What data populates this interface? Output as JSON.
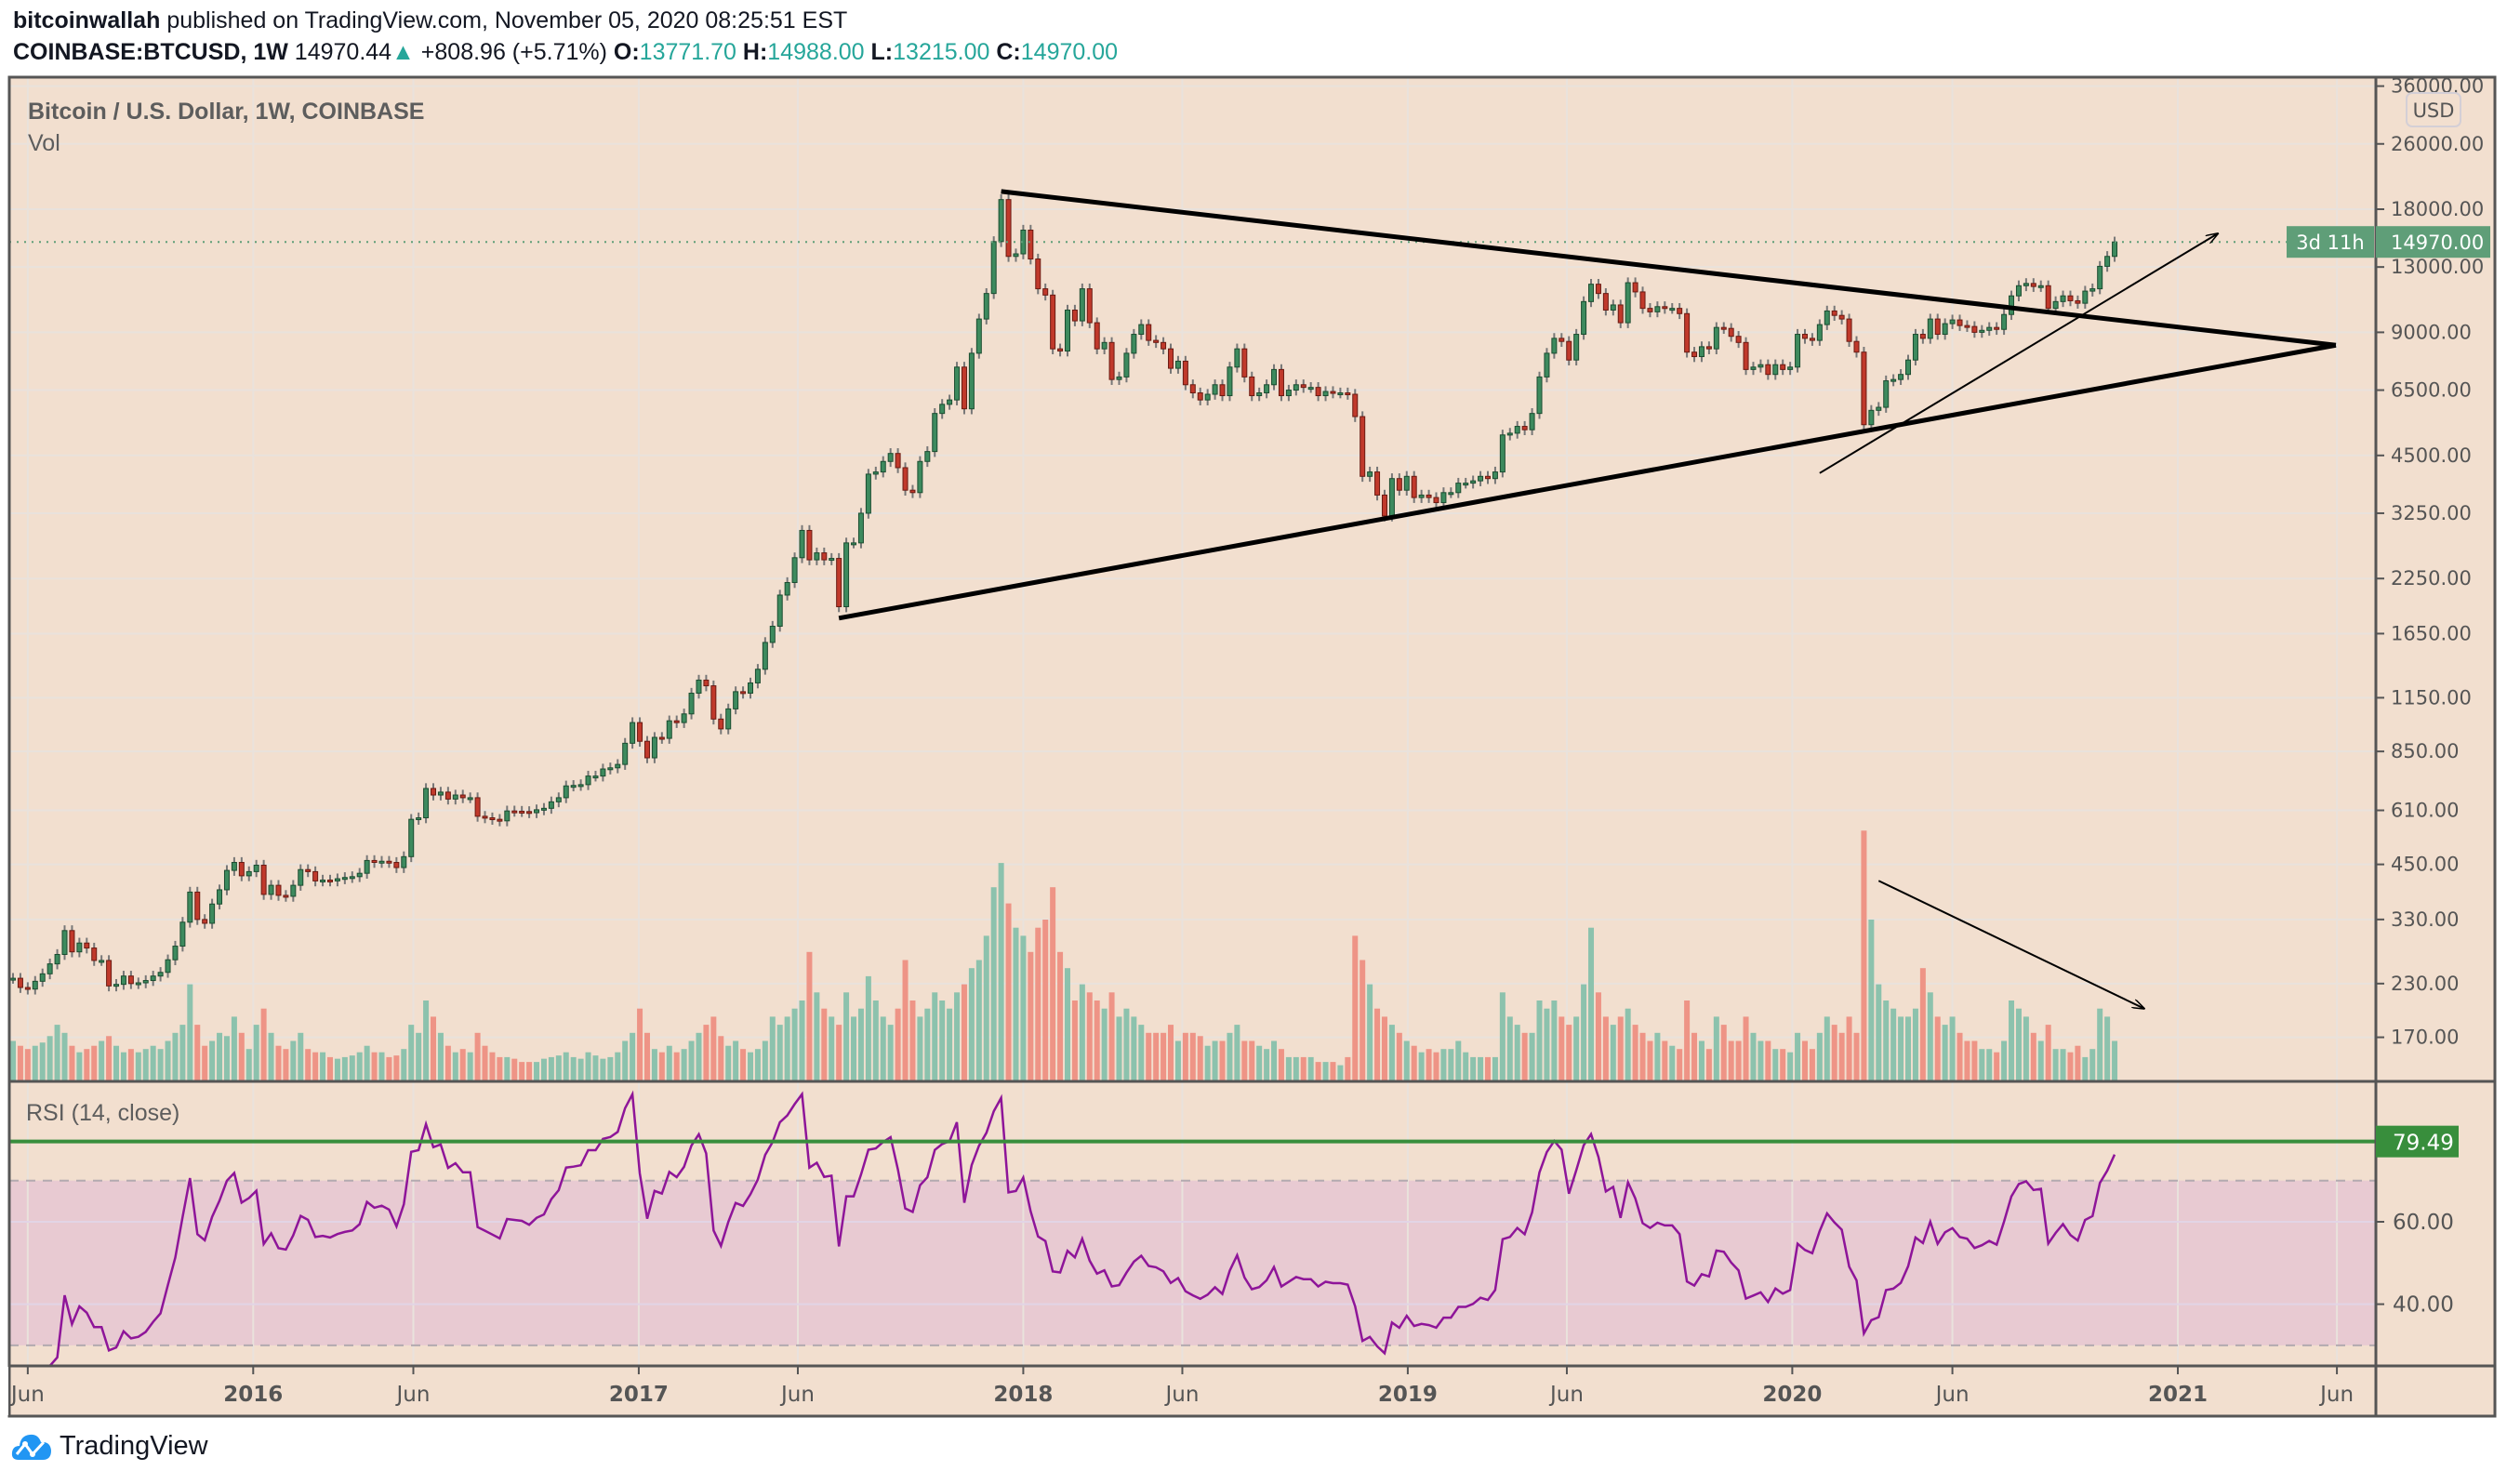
{
  "header": {
    "author": "bitcoinwallah",
    "published": "published on TradingView.com, November 05, 2020 08:25:51 EST",
    "symbol": "COINBASE:BTCUSD, 1W",
    "last": "14970.44",
    "change": "+808.96 (+5.71%)",
    "o_label": "O:",
    "o": "13771.70",
    "h_label": "H:",
    "h": "14988.00",
    "l_label": "L:",
    "l": "13215.00",
    "c_label": "C:",
    "c": "14970.00",
    "up_icon": "triangle-up-icon"
  },
  "footer": {
    "brand": "TradingView",
    "logo_icon": "tradingview-cloud-icon"
  },
  "colors": {
    "background": "#f2dfcf",
    "up": "#3d8a5e",
    "down": "#c0392b",
    "vol_up": "#8cc2ad",
    "vol_down": "#ee9486",
    "rsi": "#8e1599",
    "rsi_band": "#e8cad2",
    "price_label": "#5f9e78",
    "hline": "#388e3c",
    "accent": "#26a69a"
  },
  "chart_data": {
    "type": "candlestick",
    "title": "Bitcoin / U.S. Dollar, 1W, COINBASE",
    "volume_label": "Vol",
    "indicator_label": "RSI (14, close)",
    "interval": "1W",
    "first_week": "2015-05-18",
    "y_scale": "log",
    "currency": "USD",
    "ylim": [
      140,
      38000
    ],
    "grid": true,
    "close": [
      237,
      225,
      223,
      233,
      243,
      257,
      271,
      310,
      275,
      289,
      281,
      262,
      262,
      227,
      229,
      240,
      230,
      231,
      234,
      240,
      245,
      263,
      284,
      325,
      385,
      330,
      323,
      360,
      390,
      435,
      455,
      422,
      432,
      448,
      380,
      400,
      378,
      376,
      400,
      437,
      432,
      410,
      412,
      410,
      415,
      418,
      420,
      428,
      460,
      455,
      458,
      455,
      442,
      470,
      580,
      585,
      690,
      665,
      676,
      650,
      665,
      655,
      655,
      590,
      585,
      580,
      575,
      608,
      607,
      606,
      602,
      612,
      617,
      640,
      655,
      700,
      702,
      705,
      740,
      740,
      770,
      775,
      790,
      890,
      1000,
      900,
      820,
      920,
      915,
      1010,
      1000,
      1050,
      1180,
      1270,
      1230,
      1020,
      965,
      1080,
      1190,
      1180,
      1250,
      1350,
      1570,
      1720,
      2050,
      2200,
      2530,
      2950,
      2500,
      2600,
      2500,
      2520,
      1920,
      2750,
      2750,
      3250,
      4050,
      4100,
      4350,
      4550,
      4200,
      3700,
      3650,
      4350,
      4600,
      5700,
      6000,
      6150,
      7400,
      5850,
      8000,
      9700,
      11200,
      15000,
      19000,
      13800,
      14000,
      16000,
      13600,
      11500,
      11100,
      8200,
      8100,
      10200,
      9600,
      11500,
      9500,
      8200,
      8500,
      6900,
      7000,
      8000,
      8900,
      9400,
      8600,
      8500,
      8200,
      7350,
      7650,
      6700,
      6400,
      6150,
      6350,
      6700,
      6300,
      7400,
      8200,
      7000,
      6300,
      6400,
      6700,
      7300,
      6300,
      6500,
      6700,
      6600,
      6600,
      6300,
      6450,
      6400,
      6400,
      6350,
      5600,
      4000,
      4100,
      3600,
      3200,
      3950,
      3700,
      4000,
      3550,
      3600,
      3550,
      3450,
      3650,
      3650,
      3850,
      3850,
      3900,
      4000,
      3950,
      4100,
      5050,
      5100,
      5300,
      5200,
      5700,
      7000,
      8000,
      8700,
      8550,
      7700,
      8900,
      10700,
      11800,
      11200,
      10200,
      10500,
      9500,
      11900,
      11300,
      10300,
      10100,
      10400,
      10300,
      10300,
      10000,
      8050,
      7850,
      8300,
      8200,
      9250,
      9200,
      8800,
      8500,
      7300,
      7400,
      7500,
      7100,
      7500,
      7300,
      7400,
      8900,
      8700,
      8600,
      9400,
      10150,
      9900,
      9700,
      8550,
      8050,
      5350,
      5800,
      5900,
      6850,
      6900,
      7100,
      7700,
      8900,
      8700,
      9700,
      8900,
      9450,
      9650,
      9350,
      9300,
      9000,
      9100,
      9250,
      9150,
      9950,
      11050,
      11700,
      11850,
      11650,
      11700,
      10300,
      10700,
      11050,
      10750,
      10600,
      11350,
      11500,
      13050,
      13800,
      14970
    ],
    "volume": [
      25,
      22,
      20,
      22,
      24,
      28,
      35,
      30,
      22,
      18,
      20,
      22,
      25,
      28,
      22,
      18,
      20,
      18,
      20,
      22,
      20,
      25,
      30,
      35,
      60,
      35,
      22,
      25,
      30,
      28,
      40,
      30,
      20,
      35,
      45,
      30,
      22,
      20,
      25,
      30,
      20,
      18,
      18,
      15,
      14,
      15,
      16,
      18,
      22,
      18,
      18,
      15,
      16,
      20,
      35,
      30,
      50,
      40,
      30,
      22,
      18,
      20,
      18,
      30,
      22,
      18,
      15,
      15,
      14,
      12,
      12,
      12,
      14,
      15,
      16,
      18,
      15,
      14,
      18,
      16,
      14,
      15,
      18,
      25,
      30,
      45,
      30,
      20,
      18,
      22,
      18,
      20,
      25,
      30,
      35,
      40,
      28,
      22,
      25,
      20,
      18,
      20,
      25,
      40,
      35,
      40,
      45,
      50,
      80,
      55,
      45,
      40,
      35,
      55,
      40,
      45,
      65,
      50,
      40,
      35,
      45,
      75,
      50,
      40,
      45,
      55,
      50,
      45,
      55,
      60,
      70,
      75,
      90,
      120,
      135,
      110,
      95,
      90,
      80,
      95,
      100,
      120,
      80,
      70,
      50,
      60,
      55,
      50,
      45,
      55,
      40,
      45,
      40,
      35,
      30,
      30,
      30,
      35,
      25,
      30,
      30,
      28,
      22,
      25,
      25,
      30,
      35,
      25,
      25,
      22,
      20,
      25,
      20,
      15,
      15,
      15,
      15,
      12,
      12,
      12,
      10,
      15,
      90,
      75,
      60,
      45,
      40,
      35,
      30,
      25,
      22,
      18,
      20,
      18,
      20,
      20,
      25,
      18,
      15,
      15,
      15,
      15,
      55,
      40,
      35,
      30,
      30,
      50,
      45,
      50,
      40,
      35,
      40,
      60,
      95,
      55,
      40,
      35,
      40,
      45,
      35,
      30,
      25,
      30,
      25,
      22,
      20,
      50,
      30,
      25,
      20,
      40,
      35,
      25,
      25,
      40,
      30,
      25,
      25,
      20,
      20,
      18,
      30,
      25,
      20,
      30,
      40,
      35,
      30,
      40,
      30,
      155,
      100,
      60,
      50,
      45,
      40,
      40,
      45,
      70,
      55,
      40,
      35,
      40,
      30,
      25,
      25,
      20,
      20,
      18,
      25,
      50,
      45,
      40,
      30,
      25,
      35,
      20,
      20,
      18,
      22,
      15,
      20,
      45,
      40,
      25
    ],
    "price_ticks": [
      "36000.00",
      "26000.00",
      "18000.00",
      "13000.00",
      "9000.00",
      "6500.00",
      "4500.00",
      "3250.00",
      "2250.00",
      "1650.00",
      "1150.00",
      "850.00",
      "610.00",
      "450.00",
      "330.00",
      "230.00",
      "170.00"
    ],
    "last_price_label": "14970.00",
    "countdown_label": "3d 11h",
    "rsi_ticks": [
      "60.00",
      "40.00"
    ],
    "rsi_band": [
      30,
      70
    ],
    "rsi_hline": 79.49,
    "rsi_hline_label": "79.49",
    "time_ticks": [
      {
        "label": "Jun",
        "date": "2015-06-01"
      },
      {
        "label": "2016",
        "date": "2016-01-01"
      },
      {
        "label": "Jun",
        "date": "2016-06-01"
      },
      {
        "label": "2017",
        "date": "2017-01-01"
      },
      {
        "label": "Jun",
        "date": "2017-06-01"
      },
      {
        "label": "2018",
        "date": "2018-01-01"
      },
      {
        "label": "Jun",
        "date": "2018-06-01"
      },
      {
        "label": "2019",
        "date": "2019-01-01"
      },
      {
        "label": "Jun",
        "date": "2019-06-01"
      },
      {
        "label": "2020",
        "date": "2020-01-01"
      },
      {
        "label": "Jun",
        "date": "2020-06-01"
      },
      {
        "label": "2021",
        "date": "2021-01-01"
      },
      {
        "label": "Jun",
        "date": "2021-06-01"
      }
    ],
    "drawings": [
      {
        "kind": "trendline",
        "name": "upper-trendline",
        "from": {
          "date": "2017-12-11",
          "price": 19900
        },
        "to": {
          "date": "2021-05-31",
          "price": 8370
        }
      },
      {
        "kind": "trendline",
        "name": "lower-trendline",
        "from": {
          "date": "2017-07-10",
          "price": 1800
        },
        "to": {
          "date": "2021-05-31",
          "price": 8370
        }
      },
      {
        "kind": "arrow",
        "name": "price-arrow",
        "from": {
          "date": "2020-01-27",
          "price": 4074
        },
        "to": {
          "date": "2021-02-08",
          "price": 15700
        }
      },
      {
        "kind": "arrow",
        "name": "volume-arrow",
        "from": {
          "date": "2020-03-23",
          "volume": 124
        },
        "to": {
          "date": "2020-11-30",
          "volume": 45
        }
      }
    ]
  }
}
